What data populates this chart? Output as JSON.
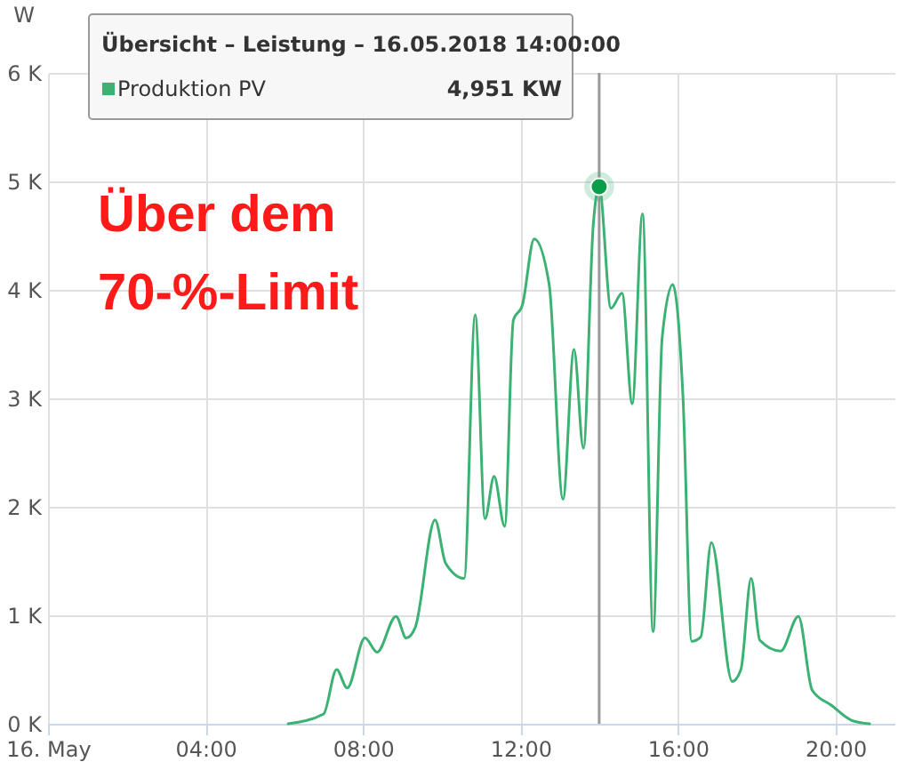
{
  "chart_data": {
    "type": "line",
    "ylabel": "W",
    "x": [
      6.1,
      7.0,
      7.33,
      7.6,
      8.05,
      8.36,
      8.84,
      9.1,
      9.33,
      9.83,
      10.1,
      10.57,
      10.85,
      11.1,
      11.33,
      11.6,
      11.82,
      12.05,
      12.35,
      12.73,
      13.08,
      13.36,
      13.6,
      13.85,
      14.0,
      14.3,
      14.58,
      14.84,
      15.1,
      15.37,
      15.6,
      15.87,
      16.13,
      16.35,
      16.58,
      16.85,
      17.38,
      17.6,
      17.86,
      18.08,
      18.61,
      19.06,
      19.41,
      19.9,
      20.42,
      20.87
    ],
    "series": [
      {
        "name": "Produktion PV",
        "color": "#3bb273",
        "values": [
          0,
          90,
          500,
          330,
          790,
          660,
          990,
          790,
          890,
          1880,
          1480,
          1340,
          3770,
          1890,
          2280,
          1820,
          3720,
          3860,
          4470,
          4050,
          2070,
          3450,
          2540,
          4600,
          4951,
          3830,
          3970,
          2950,
          4700,
          850,
          3560,
          4050,
          3000,
          760,
          800,
          1670,
          390,
          500,
          1340,
          770,
          670,
          990,
          310,
          170,
          30,
          0
        ]
      }
    ],
    "xlim": [
      0,
      21.5
    ],
    "xticks": [
      {
        "value": 0,
        "label": "16. May"
      },
      {
        "value": 4,
        "label": "04:00"
      },
      {
        "value": 8,
        "label": "08:00"
      },
      {
        "value": 12,
        "label": "12:00"
      },
      {
        "value": 16,
        "label": "16:00"
      },
      {
        "value": 20,
        "label": "20:00"
      }
    ],
    "ylim": [
      0,
      6000
    ],
    "yticks": [
      {
        "value": 0,
        "label": "0 K"
      },
      {
        "value": 1000,
        "label": "1 K"
      },
      {
        "value": 2000,
        "label": "2 K"
      },
      {
        "value": 3000,
        "label": "3 K"
      },
      {
        "value": 4000,
        "label": "4 K"
      },
      {
        "value": 5000,
        "label": "5 K"
      },
      {
        "value": 6000,
        "label": "6 K"
      }
    ],
    "grid": true,
    "legend": "top left",
    "marker": "none",
    "ref_lines": [
      {
        "axis": "x",
        "value": 14,
        "color": "#999999"
      }
    ],
    "annotations": [
      "Übersicht – Leistung – 16.05.2018 14:00:00",
      "4,951 KW",
      "Über dem",
      "70-%-Limit"
    ]
  }
}
